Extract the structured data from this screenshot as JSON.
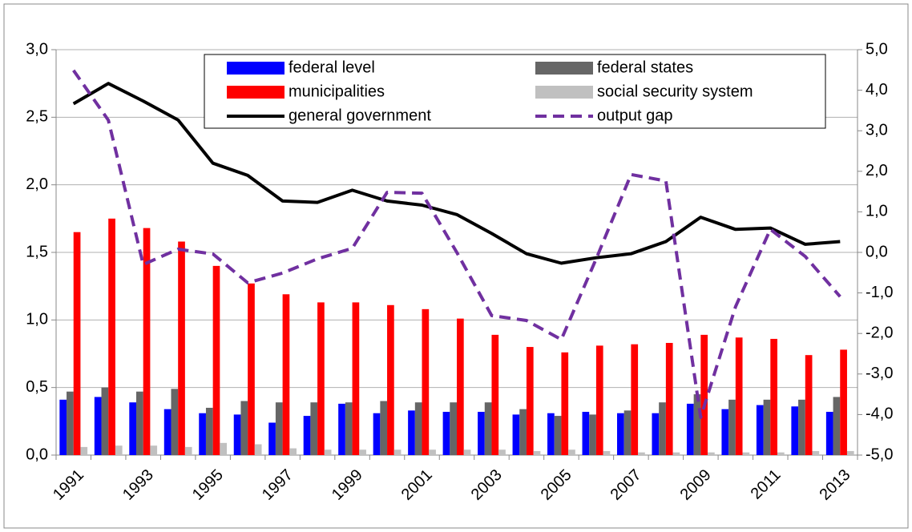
{
  "chart_data": {
    "type": "bar",
    "categories": [
      "1991",
      null,
      "1993",
      null,
      "1995",
      null,
      "1997",
      null,
      "1999",
      null,
      "2001",
      null,
      "2003",
      null,
      "2005",
      null,
      "2007",
      null,
      "2009",
      null,
      "2011",
      null,
      "2013"
    ],
    "series": [
      {
        "name": "federal level",
        "type": "bar",
        "color": "#0000ff",
        "values": [
          0.41,
          0.43,
          0.39,
          0.34,
          0.31,
          0.3,
          0.24,
          0.29,
          0.38,
          0.31,
          0.33,
          0.32,
          0.32,
          0.3,
          0.31,
          0.32,
          0.31,
          0.31,
          0.38,
          0.34,
          0.37,
          0.36,
          0.32
        ]
      },
      {
        "name": "federal states",
        "type": "bar",
        "color": "#666666",
        "values": [
          0.47,
          0.5,
          0.47,
          0.49,
          0.35,
          0.4,
          0.39,
          0.39,
          0.39,
          0.4,
          0.39,
          0.39,
          0.39,
          0.34,
          0.29,
          0.3,
          0.33,
          0.39,
          0.45,
          0.41,
          0.41,
          0.41,
          0.43
        ]
      },
      {
        "name": "municipalities",
        "type": "bar",
        "color": "#ff0000",
        "values": [
          1.65,
          1.75,
          1.68,
          1.58,
          1.4,
          1.27,
          1.19,
          1.13,
          1.13,
          1.11,
          1.08,
          1.01,
          0.89,
          0.8,
          0.76,
          0.81,
          0.82,
          0.83,
          0.89,
          0.87,
          0.86,
          0.74,
          0.78
        ]
      },
      {
        "name": "social security system",
        "type": "bar",
        "color": "#c0c0c0",
        "values": [
          0.06,
          0.07,
          0.07,
          0.06,
          0.09,
          0.08,
          0.05,
          0.04,
          0.04,
          0.04,
          0.04,
          0.04,
          0.04,
          0.03,
          0.04,
          0.03,
          0.02,
          0.02,
          0.02,
          0.02,
          0.02,
          0.03,
          0.03
        ]
      },
      {
        "name": "general government",
        "type": "line",
        "color": "#000000",
        "line_style": "solid",
        "values": [
          2.6,
          2.75,
          2.62,
          2.48,
          2.16,
          2.07,
          1.88,
          1.87,
          1.96,
          1.88,
          1.85,
          1.78,
          1.64,
          1.49,
          1.42,
          1.46,
          1.49,
          1.58,
          1.76,
          1.67,
          1.68,
          1.56,
          1.58
        ]
      },
      {
        "name": "output gap",
        "type": "line",
        "color": "#7030a0",
        "line_style": "dashed",
        "axis": "y2",
        "values": [
          4.49,
          3.26,
          -0.3,
          0.08,
          -0.04,
          -0.75,
          -0.51,
          -0.16,
          0.1,
          1.48,
          1.46,
          0.0,
          -1.56,
          -1.68,
          -2.15,
          -0.16,
          1.92,
          1.76,
          -4.07,
          -1.34,
          0.57,
          -0.1,
          -1.09
        ]
      }
    ],
    "ylim": [
      0,
      3
    ],
    "yticks": [
      {
        "value": 0,
        "label": "0,0"
      },
      {
        "value": 0.5,
        "label": "0,5"
      },
      {
        "value": 1,
        "label": "1,0"
      },
      {
        "value": 1.5,
        "label": "1,5"
      },
      {
        "value": 2,
        "label": "2,0"
      },
      {
        "value": 2.5,
        "label": "2,5"
      },
      {
        "value": 3,
        "label": "3,0"
      }
    ],
    "y2lim": [
      -5,
      5
    ],
    "y2ticks": [
      {
        "value": -5,
        "label": "-5,0"
      },
      {
        "value": -4,
        "label": "-4,0"
      },
      {
        "value": -3,
        "label": "-3,0"
      },
      {
        "value": -2,
        "label": "-2,0"
      },
      {
        "value": -1,
        "label": "-1,0"
      },
      {
        "value": 0,
        "label": "0,0"
      },
      {
        "value": 1,
        "label": "1,0"
      },
      {
        "value": 2,
        "label": "2,0"
      },
      {
        "value": 3,
        "label": "3,0"
      },
      {
        "value": 4,
        "label": "4,0"
      },
      {
        "value": 5,
        "label": "5,0"
      }
    ],
    "grid": true,
    "legend": "top"
  }
}
